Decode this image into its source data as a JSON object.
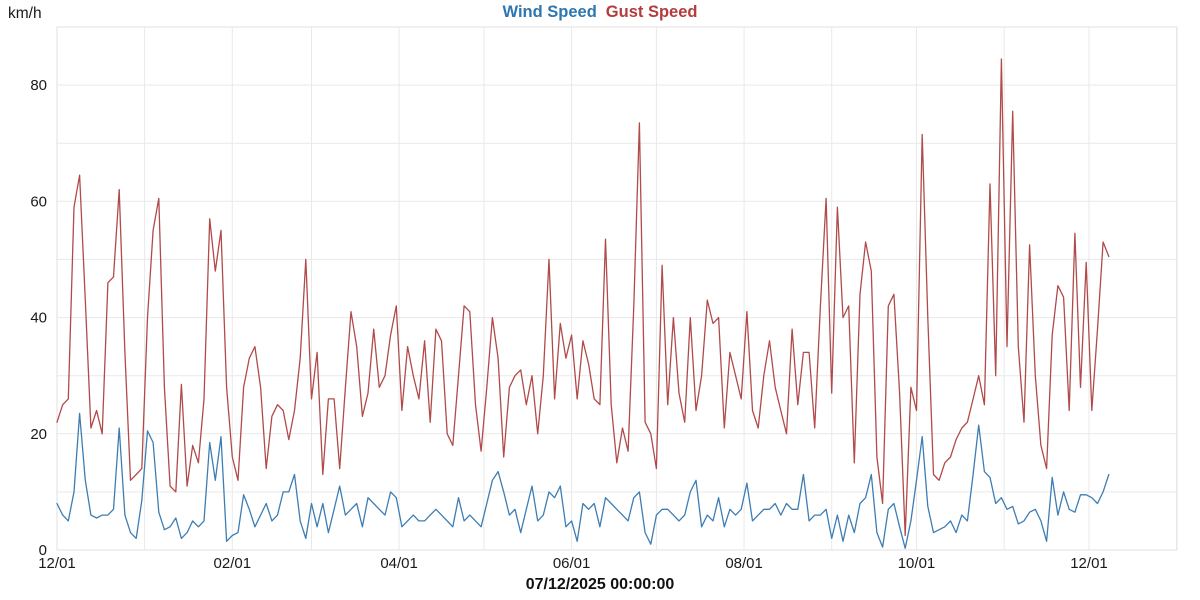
{
  "header": {
    "unit_label": "km/h",
    "series_titles": [
      {
        "label": "Wind Speed",
        "color": "#2e76b0"
      },
      {
        "label": "Gust Speed",
        "color": "#b23c3e"
      }
    ]
  },
  "footer": {
    "timestamp": "07/12/2025 00:00:00"
  },
  "chart_data": {
    "type": "line",
    "title": "Wind Speed / Gust Speed",
    "ylabel": "km/h",
    "ylim": [
      0,
      90
    ],
    "y_ticks": [
      0,
      20,
      40,
      60,
      80
    ],
    "y_grid_step": 10,
    "grid": true,
    "legend_position": "top-center",
    "x_unit": "days since 2024-12-01",
    "sample_interval_days": 2,
    "x_gridline_days": [
      0,
      31,
      62,
      90,
      121,
      151,
      182,
      212,
      243,
      274,
      304,
      335,
      365,
      396
    ],
    "x_label_days": [
      0,
      62,
      121,
      182,
      243,
      304,
      365
    ],
    "x_tick_labels": [
      "12/01",
      "02/01",
      "04/01",
      "06/01",
      "08/01",
      "10/01",
      "12/01"
    ],
    "series": [
      {
        "name": "Wind Speed",
        "color": "#3d7db3",
        "values": [
          8,
          6,
          5,
          10,
          23.5,
          12,
          6,
          5.5,
          6,
          6,
          7,
          21,
          6,
          3,
          2,
          8.5,
          20.5,
          18.5,
          6.5,
          3.5,
          4,
          5.5,
          2,
          3,
          5,
          4,
          5,
          18.5,
          12,
          19.5,
          1.5,
          2.5,
          3,
          9.5,
          7,
          4,
          6,
          8,
          5,
          6,
          10,
          10,
          13,
          5,
          2,
          8,
          4,
          8,
          3,
          7,
          11,
          6,
          7,
          8,
          4,
          9,
          8,
          7,
          6,
          10,
          9,
          4,
          5,
          6,
          5,
          5,
          6,
          7,
          6,
          5,
          4,
          9,
          5,
          6,
          5,
          4,
          8,
          12,
          13.5,
          10,
          6,
          7,
          3,
          7,
          11,
          5,
          6,
          10,
          9,
          11,
          4,
          5,
          1.5,
          8,
          7,
          8,
          4,
          9,
          8,
          7,
          6,
          5,
          9,
          10,
          3,
          1,
          6,
          7,
          7,
          6,
          5,
          6,
          10,
          12,
          4,
          6,
          5,
          9,
          4,
          7,
          6,
          7,
          11.5,
          5,
          6,
          7,
          7,
          8,
          6,
          8,
          7,
          7,
          13,
          5,
          6,
          6,
          7,
          2,
          6,
          1.5,
          6,
          3,
          8,
          9,
          13,
          3,
          0.5,
          7,
          8,
          4,
          0.3,
          5,
          12,
          19.5,
          7.5,
          3,
          3.5,
          4,
          5,
          3,
          6,
          5,
          13,
          21.5,
          13.5,
          12.5,
          8,
          9,
          7,
          7.5,
          4.5,
          5,
          6.5,
          7,
          5,
          1.5,
          12.5,
          6,
          10,
          7,
          6.5,
          9.5,
          9.5,
          9,
          8,
          10,
          13
        ]
      },
      {
        "name": "Gust Speed",
        "color": "#b14a4a",
        "values": [
          22,
          25,
          26,
          59,
          64.5,
          43,
          21,
          24,
          20,
          46,
          47,
          62,
          34,
          12,
          13,
          14,
          40,
          55,
          60.5,
          28,
          11,
          10,
          28.5,
          11,
          18,
          15,
          26,
          57,
          48,
          55,
          28,
          16,
          12,
          28,
          33,
          35,
          28,
          14,
          23,
          25,
          24,
          19,
          24,
          33,
          50,
          26,
          34,
          13,
          26,
          26,
          14,
          28,
          41,
          35,
          23,
          27,
          38,
          28,
          30,
          37,
          42,
          24,
          35,
          30,
          26,
          36,
          22,
          38,
          36,
          20,
          18,
          30,
          42,
          41,
          25,
          17,
          28,
          40,
          33,
          16,
          28,
          30,
          31,
          25,
          30,
          20,
          30,
          50,
          26,
          39,
          33,
          37,
          26,
          36,
          32,
          26,
          25,
          53.5,
          25,
          15,
          21,
          17,
          42,
          73.5,
          22,
          20,
          14,
          49,
          25,
          40,
          27,
          22,
          40,
          24,
          30,
          43,
          39,
          40,
          21,
          34,
          30,
          26,
          41,
          24,
          21,
          30,
          36,
          28,
          24,
          20,
          38,
          25,
          34,
          34,
          21,
          42,
          60.5,
          27,
          59,
          40,
          42,
          15,
          44,
          53,
          48,
          16,
          8,
          42,
          44,
          27,
          2.5,
          28,
          24,
          71.5,
          40,
          13,
          12,
          15,
          16,
          19,
          21,
          22,
          26,
          30,
          25,
          63,
          30,
          84.5,
          35,
          75.5,
          35,
          22,
          52.5,
          30,
          18,
          14,
          37,
          45.5,
          43.5,
          24,
          54.5,
          28,
          49.5,
          24,
          38,
          53,
          50.5
        ]
      }
    ]
  }
}
